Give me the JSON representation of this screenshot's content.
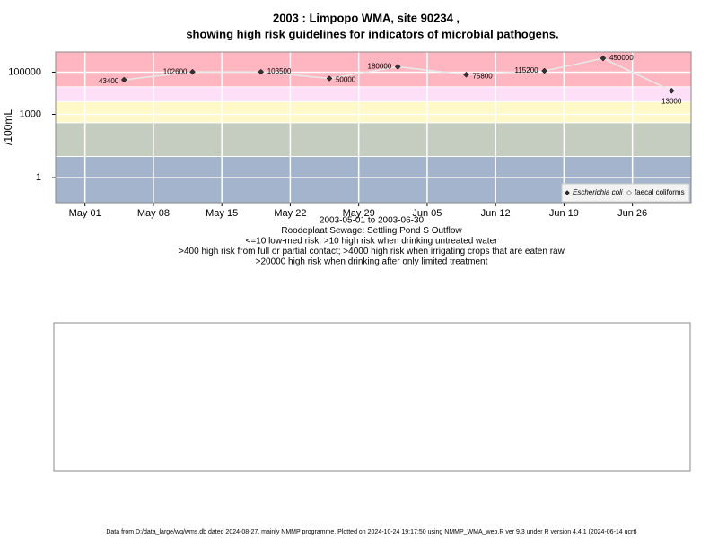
{
  "chart_data": {
    "type": "line",
    "title": "2003 : Limpopo WMA, site 90234 ,",
    "subtitle": "showing high risk guidelines for indicators of microbial pathogens.",
    "y_label": "/100mL",
    "notes": [
      "2003-05-01 to 2003-06-30",
      "Roodeplaat Sewage: Settling Pond S Outflow",
      "<=10 low-med risk; >10 high risk when drinking untreated water",
      ">400 high risk from full or partial contact; >4000 high risk when irrigating crops that are eaten raw",
      ">20000 high risk when drinking after only limited treatment"
    ],
    "x": [
      "2003-05-05",
      "2003-05-12",
      "2003-05-19",
      "2003-05-26",
      "2003-06-02",
      "2003-06-09",
      "2003-06-17",
      "2003-06-23",
      "2003-06-30"
    ],
    "series": [
      {
        "name": "Escherichia coli",
        "color": "#333333",
        "values": [
          43400,
          102600,
          103500,
          50000,
          180000,
          75800,
          115200,
          450000,
          13000
        ]
      },
      {
        "name": "faecal coliforms",
        "color": "#ffffff",
        "values": [
          null,
          null,
          null,
          null,
          null,
          null,
          null,
          null,
          null
        ]
      }
    ],
    "line_color": "#e8e8e8",
    "log_y": true,
    "ylim": [
      0.065,
      900000
    ],
    "yticks": [
      1,
      1000,
      100000
    ],
    "xlim": [
      "2003-04-28",
      "2003-07-02"
    ],
    "xticks": [
      {
        "value": "2003-05-01",
        "label": "May 01"
      },
      {
        "value": "2003-05-08",
        "label": "May 08"
      },
      {
        "value": "2003-05-15",
        "label": "May 15"
      },
      {
        "value": "2003-05-22",
        "label": "May 22"
      },
      {
        "value": "2003-05-29",
        "label": "May 29"
      },
      {
        "value": "2003-06-05",
        "label": "Jun 05"
      },
      {
        "value": "2003-06-12",
        "label": "Jun 12"
      },
      {
        "value": "2003-06-19",
        "label": "Jun 19"
      },
      {
        "value": "2003-06-26",
        "label": "Jun 26"
      }
    ],
    "thresholds": [
      10,
      400,
      4000,
      20000
    ],
    "band_colors": [
      "#a4b4cc",
      "#c5cdc0",
      "#fff8c8",
      "#fde0f8",
      "#ffb6c1"
    ],
    "grid": true,
    "legend": "bottom-right"
  },
  "footer": "Data from D:/data_large/wq/wms.db dated 2024-08-27, mainly NMMP programme. Plotted on 2024-10-24 19:17:50 using NMMP_WMA_web.R ver 9.3 under R version 4.4.1 (2024-06-14 ucrt)"
}
